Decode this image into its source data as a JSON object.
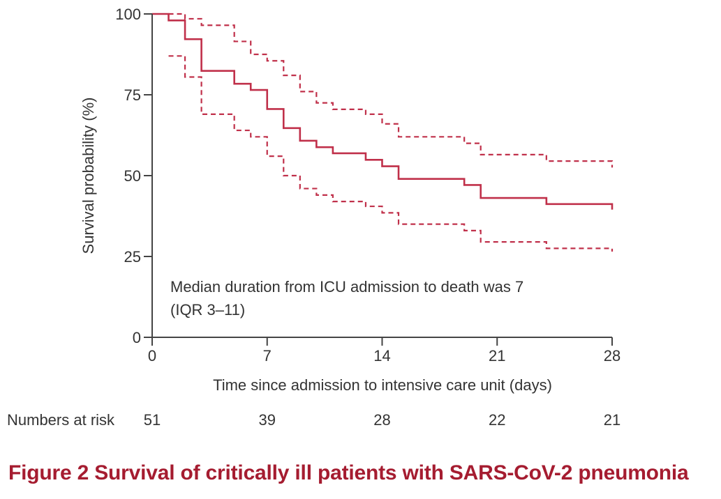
{
  "chart_data": {
    "type": "line",
    "step": true,
    "xlabel": "Time since admission to intensive care unit (days)",
    "ylabel": "Survival probability (%)",
    "xlim": [
      0,
      28
    ],
    "ylim": [
      0,
      100
    ],
    "x_ticks": [
      0,
      7,
      14,
      21,
      28
    ],
    "y_ticks": [
      0,
      25,
      50,
      75,
      100
    ],
    "series": [
      {
        "line": "solid",
        "x": [
          0,
          1,
          2,
          3,
          5,
          6,
          7,
          8,
          9,
          10,
          11,
          13,
          14,
          15,
          19,
          20,
          24,
          28
        ],
        "y": [
          100,
          98,
          92.2,
          82.4,
          78.4,
          76.5,
          70.6,
          64.7,
          60.8,
          58.8,
          56.9,
          54.9,
          52.9,
          49.0,
          47.1,
          43.1,
          41.2,
          39.5
        ]
      },
      {
        "line": "dashed",
        "x": [
          1,
          2,
          3,
          5,
          6,
          7,
          8,
          9,
          10,
          11,
          13,
          14,
          15,
          19,
          20,
          24,
          28
        ],
        "y": [
          100,
          98.5,
          96.5,
          91.5,
          87.5,
          85.5,
          81,
          76,
          72.5,
          70.5,
          69,
          66,
          62,
          60,
          56.5,
          54.5,
          52.5
        ]
      },
      {
        "line": "dashed",
        "x": [
          1,
          2,
          3,
          5,
          6,
          7,
          8,
          9,
          10,
          11,
          13,
          14,
          15,
          19,
          20,
          24,
          28
        ],
        "y": [
          87,
          80.5,
          69,
          64,
          62,
          56,
          50,
          46,
          44,
          42,
          40.5,
          38.5,
          35,
          33,
          29.5,
          27.5,
          26.5
        ]
      }
    ],
    "colors": {
      "line": "#c0304a",
      "axis": "#444444",
      "caption": "#a51c30"
    },
    "annotation": [
      "Median duration from ICU admission to death was 7",
      "(IQR 3–11)"
    ],
    "risk_table": {
      "label": "Numbers at risk",
      "days": [
        0,
        7,
        14,
        21,
        28
      ],
      "values": [
        "51",
        "39",
        "28",
        "22",
        "21"
      ]
    }
  },
  "caption": "Figure 2 Survival of critically ill patients with SARS-CoV-2 pneumonia"
}
